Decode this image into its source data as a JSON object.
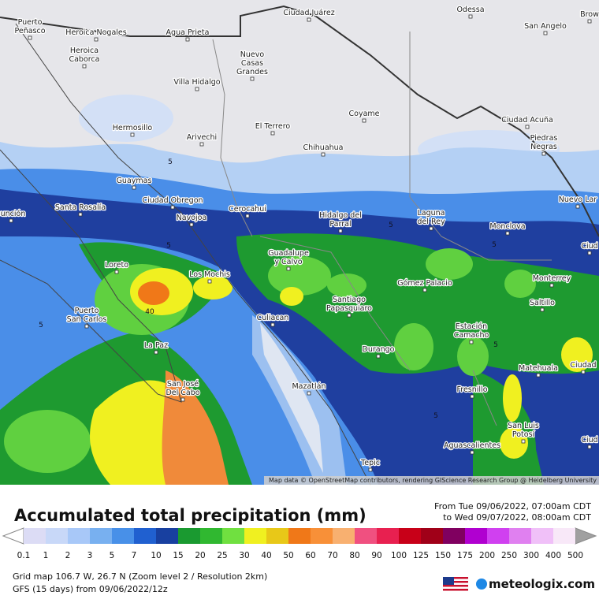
{
  "map": {
    "cities": [
      {
        "lines": [
          "Puerto",
          "Peñasco"
        ]
      },
      {
        "lines": [
          "Heroica Nogales"
        ]
      },
      {
        "lines": [
          "Agua Prieta"
        ]
      },
      {
        "lines": [
          "Ciudad Juárez"
        ]
      },
      {
        "lines": [
          "Odessa"
        ]
      },
      {
        "lines": [
          "San Angelo"
        ]
      },
      {
        "lines": [
          "Brow"
        ]
      },
      {
        "lines": [
          "Heroica",
          "Caborca"
        ]
      },
      {
        "lines": [
          "Nuevo",
          "Casas",
          "Grandes"
        ]
      },
      {
        "lines": [
          "Villa Hidalgo"
        ]
      },
      {
        "lines": [
          "Hermosillo"
        ]
      },
      {
        "lines": [
          "Arivechi"
        ]
      },
      {
        "lines": [
          "El Terrero"
        ]
      },
      {
        "lines": [
          "Coyame"
        ]
      },
      {
        "lines": [
          "Chihuahua"
        ]
      },
      {
        "lines": [
          "Ciudad Acuña"
        ]
      },
      {
        "lines": [
          "Piedras",
          "Negras"
        ]
      },
      {
        "lines": [
          "Guaymas"
        ]
      },
      {
        "lines": [
          "Ciudad Obregon"
        ]
      },
      {
        "lines": [
          "Navojoa"
        ]
      },
      {
        "lines": [
          "Santa Rosalía"
        ]
      },
      {
        "lines": [
          "Cerocahui"
        ]
      },
      {
        "lines": [
          "Hidalgo del",
          "Parral"
        ]
      },
      {
        "lines": [
          "Laguna",
          "del Rey"
        ]
      },
      {
        "lines": [
          "Monclova"
        ]
      },
      {
        "lines": [
          "Nuevo Lar"
        ]
      },
      {
        "lines": [
          "sunción"
        ]
      },
      {
        "lines": [
          "Loreto"
        ]
      },
      {
        "lines": [
          "Los Mochis"
        ]
      },
      {
        "lines": [
          "Guadalupe",
          "y Calvo"
        ]
      },
      {
        "lines": [
          "Gómez Palacio"
        ]
      },
      {
        "lines": [
          "Monterrey"
        ]
      },
      {
        "lines": [
          "Saltillo"
        ]
      },
      {
        "lines": [
          "Ciud"
        ]
      },
      {
        "lines": [
          "Puerto",
          "San Carlos"
        ]
      },
      {
        "lines": [
          "Santiago",
          "Papasquiaro"
        ]
      },
      {
        "lines": [
          "Culiacan"
        ]
      },
      {
        "lines": [
          "La Paz"
        ]
      },
      {
        "lines": [
          "Estación",
          "Camacho"
        ]
      },
      {
        "lines": [
          "Durango"
        ]
      },
      {
        "lines": [
          "San José",
          "Del Cabo"
        ]
      },
      {
        "lines": [
          "Matehuala"
        ]
      },
      {
        "lines": [
          "Ciudad"
        ]
      },
      {
        "lines": [
          "Mazatlán"
        ]
      },
      {
        "lines": [
          "Fresnillo"
        ]
      },
      {
        "lines": [
          "San Luis",
          "Potosí"
        ]
      },
      {
        "lines": [
          "Aguascalientes"
        ]
      },
      {
        "lines": [
          "Tepic"
        ]
      },
      {
        "lines": [
          "Ciud"
        ]
      }
    ],
    "contour_labels": [
      "5",
      "5",
      "5",
      "5",
      "5",
      "40",
      "5",
      "5"
    ],
    "attribution": "Map data © OpenStreetMap contributors, rendering GIScience Research Group @ Heidelberg University"
  },
  "panel": {
    "title": "Accumulated total precipitation (mm)",
    "period": [
      "From Tue 09/06/2022, 07:00am CDT",
      "to Wed 09/07/2022, 08:00am CDT"
    ],
    "colorbar": {
      "labels": [
        "0.1",
        "1",
        "2",
        "3",
        "5",
        "7",
        "10",
        "15",
        "20",
        "25",
        "30",
        "40",
        "50",
        "60",
        "70",
        "80",
        "90",
        "100",
        "125",
        "150",
        "175",
        "200",
        "250",
        "300",
        "400",
        "500"
      ],
      "colors": [
        "#dcdcf5",
        "#c8d8f8",
        "#a8c8f8",
        "#78b0f0",
        "#4890e8",
        "#2060d0",
        "#1840a0",
        "#1a9a30",
        "#30b830",
        "#70e040",
        "#f0f020",
        "#e8c818",
        "#f07818",
        "#f89038",
        "#f8b070",
        "#f05080",
        "#e82050",
        "#c80018",
        "#a00018",
        "#800060",
        "#b000d0",
        "#d040f0",
        "#e080f0",
        "#f0c0f8",
        "#f8e8f8"
      ]
    },
    "grid_info": "Grid map 106.7 W, 26.7 N (Zoom level 2 / Resolution 2km)",
    "model_info": "GFS (15 days) from  09/06/2022/12z",
    "logo": "meteologix.com"
  }
}
